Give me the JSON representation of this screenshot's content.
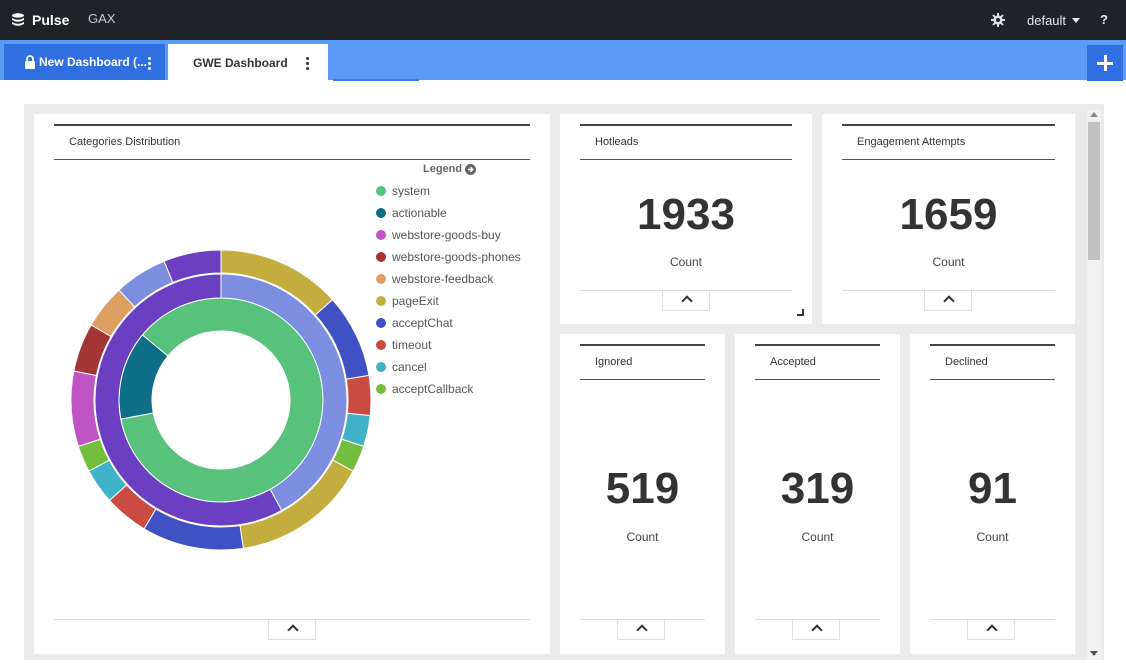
{
  "topbar": {
    "brand": "Pulse",
    "app": "GAX",
    "tenant": "default",
    "help": "?"
  },
  "tabs": [
    {
      "label": "New Dashboard (...",
      "locked": true,
      "active": false
    },
    {
      "label": "GWE Dashboard",
      "active": true
    }
  ],
  "widgets": {
    "categories": {
      "title": "Categories Distribution",
      "legend_toggle": "Legend",
      "chart_data": {
        "type": "sunburst",
        "inner_ring": [
          {
            "name": "system",
            "value": 86,
            "color": "#58c27d"
          },
          {
            "name": "actionable",
            "value": 14,
            "color": "#0d6e85"
          }
        ],
        "outer_ring_inner": [
          {
            "name": "acceptChat",
            "value": 0.42,
            "color": "#7b8ee0"
          },
          {
            "name": "acceptChat",
            "value": 0.58,
            "color": "#6a3fc1"
          }
        ],
        "outer_ring": [
          {
            "name": "pageExit",
            "value": 0.14,
            "color": "#c2ad3e"
          },
          {
            "name": "acceptChat",
            "value": 0.095,
            "color": "#3f51c4"
          },
          {
            "name": "timeout",
            "value": 0.045,
            "color": "#c94b41"
          },
          {
            "name": "cancel",
            "value": 0.035,
            "color": "#3fb2c7"
          },
          {
            "name": "acceptCallback",
            "value": 0.03,
            "color": "#73bf3d"
          },
          {
            "name": "pageExit",
            "value": 0.155,
            "color": "#c2ad3e"
          },
          {
            "name": "acceptChat",
            "value": 0.115,
            "color": "#3f51c4"
          },
          {
            "name": "timeout",
            "value": 0.05,
            "color": "#c94b41"
          },
          {
            "name": "cancel",
            "value": 0.04,
            "color": "#3fb2c7"
          },
          {
            "name": "acceptCallback",
            "value": 0.03,
            "color": "#73bf3d"
          },
          {
            "name": "webstore-goods-buy",
            "value": 0.085,
            "color": "#bf55c4"
          },
          {
            "name": "webstore-goods-phones",
            "value": 0.055,
            "color": "#a33535"
          },
          {
            "name": "webstore-feedback",
            "value": 0.05,
            "color": "#dd9e62"
          },
          {
            "name": "acceptChat",
            "value": 0.06,
            "color": "#7b8ee0"
          },
          {
            "name": "acceptChat",
            "value": 0.065,
            "color": "#6a3fc1"
          }
        ]
      },
      "legend": [
        {
          "label": "system",
          "color": "#58c27d"
        },
        {
          "label": "actionable",
          "color": "#0d6e85"
        },
        {
          "label": "webstore-goods-buy",
          "color": "#bf55c4"
        },
        {
          "label": "webstore-goods-phones",
          "color": "#a33535"
        },
        {
          "label": "webstore-feedback",
          "color": "#dd9e62"
        },
        {
          "label": "pageExit",
          "color": "#c2ad3e"
        },
        {
          "label": "acceptChat",
          "color": "#3f51c4"
        },
        {
          "label": "timeout",
          "color": "#c94b41"
        },
        {
          "label": "cancel",
          "color": "#3fb2c7"
        },
        {
          "label": "acceptCallback",
          "color": "#73bf3d"
        }
      ]
    },
    "hotleads": {
      "title": "Hotleads",
      "value": "1933",
      "caption": "Count"
    },
    "engagement": {
      "title": "Engagement Attempts",
      "value": "1659",
      "caption": "Count"
    },
    "ignored": {
      "title": "Ignored",
      "value": "519",
      "caption": "Count"
    },
    "accepted": {
      "title": "Accepted",
      "value": "319",
      "caption": "Count"
    },
    "declined": {
      "title": "Declined",
      "value": "91",
      "caption": "Count"
    }
  }
}
